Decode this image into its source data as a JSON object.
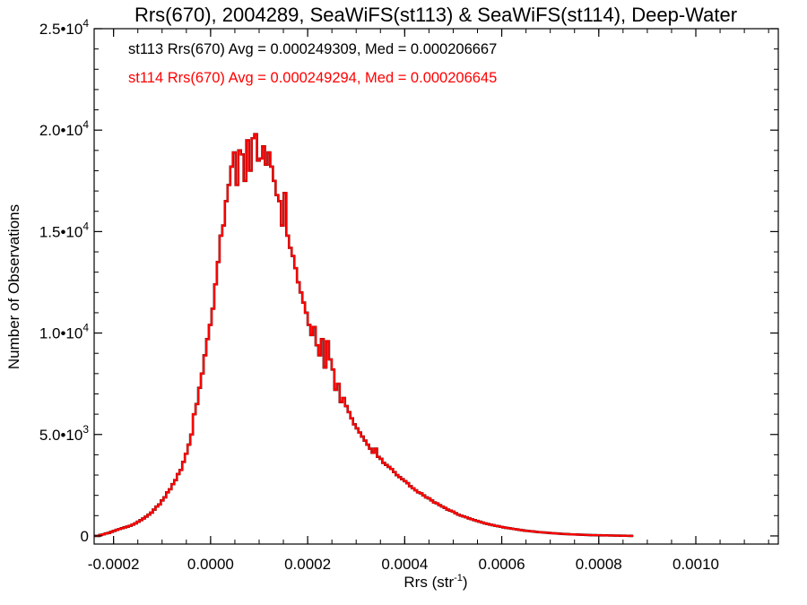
{
  "chart_data": {
    "type": "line",
    "title": "Rrs(670), 2004289, SeaWiFS(st113) & SeaWiFS(st114), Deep-Water",
    "xlabel": "Rrs (str",
    "xlabel_sup": "-1",
    "xlabel_close": ")",
    "ylabel": "Number of Observations",
    "xlim": [
      -0.00024,
      0.00117
    ],
    "ylim": [
      -400,
      25000
    ],
    "x_ticks": [
      {
        "value": -0.0002,
        "label": "-0.0002"
      },
      {
        "value": 0.0,
        "label": "0.0000"
      },
      {
        "value": 0.0002,
        "label": "0.0002"
      },
      {
        "value": 0.0004,
        "label": "0.0004"
      },
      {
        "value": 0.0006,
        "label": "0.0006"
      },
      {
        "value": 0.0008,
        "label": "0.0008"
      },
      {
        "value": 0.001,
        "label": "0.0010"
      }
    ],
    "y_ticks": [
      {
        "value": 0,
        "mant": "0",
        "exp": ""
      },
      {
        "value": 5000,
        "mant": "5.0•10",
        "exp": "3"
      },
      {
        "value": 10000,
        "mant": "1.0•10",
        "exp": "4"
      },
      {
        "value": 15000,
        "mant": "1.5•10",
        "exp": "4"
      },
      {
        "value": 20000,
        "mant": "2.0•10",
        "exp": "4"
      },
      {
        "value": 25000,
        "mant": "2.5•10",
        "exp": "4"
      }
    ],
    "grid": false,
    "bin_width": 5.5e-06,
    "series": [
      {
        "name": "st113",
        "color": "#000000",
        "bins_start": -0.00024,
        "values": [
          0,
          0,
          50,
          80,
          120,
          150,
          200,
          250,
          300,
          340,
          380,
          420,
          460,
          500,
          560,
          620,
          700,
          780,
          860,
          950,
          1050,
          1150,
          1300,
          1450,
          1550,
          1750,
          1900,
          2150,
          2300,
          2550,
          2750,
          3050,
          3250,
          3650,
          4050,
          4500,
          5000,
          6000,
          6500,
          7300,
          8000,
          8900,
          9700,
          10400,
          11200,
          12400,
          13500,
          14800,
          15300,
          16500,
          17300,
          18200,
          18900,
          17300,
          19000,
          18800,
          17500,
          19500,
          18000,
          19600,
          19800,
          18500,
          18600,
          19200,
          18300,
          18900,
          18200,
          17500,
          16800,
          16500,
          15300,
          16900,
          14800,
          14200,
          13800,
          13200,
          12500,
          12000,
          11500,
          11000,
          10400,
          9900,
          10300,
          9400,
          8900,
          9700,
          8300,
          9600,
          8700,
          8200,
          7200,
          7500,
          6600,
          6800,
          6400,
          6100,
          5800,
          5500,
          5300,
          5100,
          4900,
          4700,
          4500,
          4300,
          4100,
          4300,
          3900,
          3800,
          3600,
          3500,
          3400,
          3300,
          3150,
          3000,
          2900,
          2800,
          2700,
          2600,
          2450,
          2350,
          2250,
          2150,
          2100,
          2000,
          1900,
          1850,
          1750,
          1650,
          1600,
          1520,
          1450,
          1380,
          1300,
          1250,
          1200,
          1120,
          1050,
          1000,
          960,
          920,
          860,
          820,
          780,
          740,
          700,
          660,
          620,
          590,
          560,
          530,
          500,
          480,
          450,
          420,
          400,
          380,
          360,
          340,
          320,
          300,
          280,
          260,
          250,
          235,
          220,
          205,
          190,
          180,
          170,
          160,
          150,
          140,
          130,
          120,
          110,
          100,
          95,
          90,
          80,
          75,
          70,
          65,
          60,
          55,
          50,
          45,
          40,
          38,
          35,
          32,
          30,
          28,
          25,
          22,
          20,
          18,
          15,
          12,
          10,
          8,
          5,
          0
        ]
      },
      {
        "name": "st114",
        "color": "#ff0000",
        "bins_start": -0.00024,
        "values": [
          0,
          0,
          50,
          80,
          120,
          150,
          200,
          250,
          300,
          340,
          380,
          420,
          460,
          500,
          560,
          620,
          700,
          780,
          860,
          950,
          1050,
          1150,
          1300,
          1450,
          1550,
          1750,
          1900,
          2150,
          2300,
          2550,
          2750,
          3050,
          3250,
          3650,
          4050,
          4500,
          5000,
          6000,
          6500,
          7300,
          8000,
          8900,
          9700,
          10400,
          11200,
          12400,
          13500,
          14800,
          15300,
          16500,
          17300,
          18200,
          18900,
          17300,
          19000,
          18800,
          17500,
          19500,
          18000,
          19600,
          19800,
          18500,
          18600,
          19200,
          18300,
          18900,
          18200,
          17500,
          16800,
          16500,
          15300,
          16900,
          14800,
          14200,
          13800,
          13200,
          12500,
          12000,
          11500,
          11000,
          10400,
          9900,
          10300,
          9400,
          8900,
          9700,
          8300,
          9600,
          8700,
          8200,
          7200,
          7500,
          6600,
          6800,
          6400,
          6100,
          5800,
          5500,
          5300,
          5100,
          4900,
          4700,
          4500,
          4300,
          4100,
          4300,
          3900,
          3800,
          3600,
          3500,
          3400,
          3300,
          3150,
          3000,
          2900,
          2800,
          2700,
          2600,
          2450,
          2350,
          2250,
          2150,
          2100,
          2000,
          1900,
          1850,
          1750,
          1650,
          1600,
          1520,
          1450,
          1380,
          1300,
          1250,
          1200,
          1120,
          1050,
          1000,
          960,
          920,
          860,
          820,
          780,
          740,
          700,
          660,
          620,
          590,
          560,
          530,
          500,
          480,
          450,
          420,
          400,
          380,
          360,
          340,
          320,
          300,
          280,
          260,
          250,
          235,
          220,
          205,
          190,
          180,
          170,
          160,
          150,
          140,
          130,
          120,
          110,
          100,
          95,
          90,
          80,
          75,
          70,
          65,
          60,
          55,
          50,
          45,
          40,
          38,
          35,
          32,
          30,
          28,
          25,
          22,
          20,
          18,
          15,
          12,
          10,
          8,
          5,
          0
        ]
      }
    ],
    "annotations": [
      {
        "text": "st113 Rrs(670) Avg = 0.000249309, Med = 0.000206667",
        "color": "#000000"
      },
      {
        "text": "st114 Rrs(670) Avg = 0.000249294, Med = 0.000206645",
        "color": "#ff0000"
      }
    ]
  }
}
